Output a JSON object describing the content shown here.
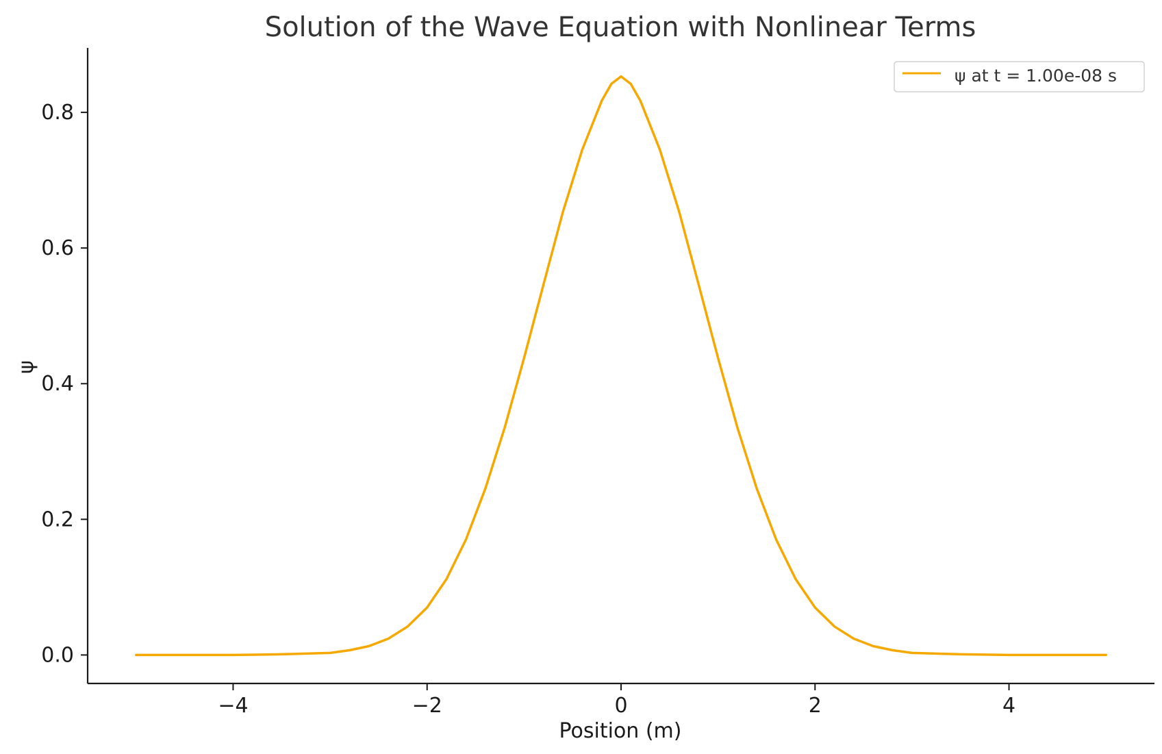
{
  "chart_data": {
    "type": "line",
    "title": "Solution of the Wave Equation with Nonlinear Terms",
    "xlabel": "Position (m)",
    "ylabel": "ψ",
    "xlim": [
      -5.5,
      5.5
    ],
    "ylim": [
      -0.042,
      0.895
    ],
    "xticks": [
      -4,
      -2,
      0,
      2,
      4
    ],
    "xtick_labels": [
      "−4",
      "−2",
      "0",
      "2",
      "4"
    ],
    "yticks": [
      0.0,
      0.2,
      0.4,
      0.6,
      0.8
    ],
    "ytick_labels": [
      "0.0",
      "0.2",
      "0.4",
      "0.6",
      "0.8"
    ],
    "grid": false,
    "legend_position": "top-right",
    "series": [
      {
        "name": "ψ at t = 1.00e-08 s",
        "color": "#f5a800",
        "x": [
          -5.0,
          -4.5,
          -4.0,
          -3.5,
          -3.0,
          -2.8,
          -2.6,
          -2.4,
          -2.2,
          -2.0,
          -1.8,
          -1.6,
          -1.4,
          -1.2,
          -1.0,
          -0.8,
          -0.6,
          -0.4,
          -0.2,
          -0.1,
          0.0,
          0.1,
          0.2,
          0.4,
          0.6,
          0.8,
          1.0,
          1.2,
          1.4,
          1.6,
          1.8,
          2.0,
          2.2,
          2.4,
          2.6,
          2.8,
          3.0,
          3.5,
          4.0,
          4.5,
          5.0
        ],
        "y": [
          0.0,
          0.0,
          0.0,
          0.001,
          0.003,
          0.007,
          0.013,
          0.024,
          0.042,
          0.07,
          0.112,
          0.17,
          0.245,
          0.335,
          0.438,
          0.546,
          0.653,
          0.745,
          0.817,
          0.842,
          0.853,
          0.842,
          0.817,
          0.745,
          0.653,
          0.546,
          0.438,
          0.335,
          0.245,
          0.17,
          0.112,
          0.07,
          0.042,
          0.024,
          0.013,
          0.007,
          0.003,
          0.001,
          0.0,
          0.0,
          0.0
        ]
      }
    ]
  }
}
